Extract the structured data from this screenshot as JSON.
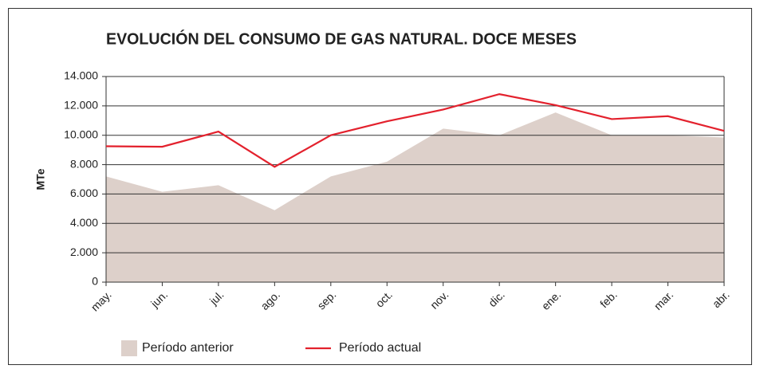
{
  "chart_data": {
    "type": "area",
    "title": "EVOLUCIÓN DEL CONSUMO DE GAS NATURAL. DOCE MESES",
    "y_label": "MTe",
    "categories": [
      "may.",
      "jun.",
      "jul.",
      "ago.",
      "sep.",
      "oct.",
      "nov.",
      "dic.",
      "ene.",
      "feb.",
      "mar.",
      "abr."
    ],
    "series": [
      {
        "name": "Período anterior",
        "type": "area",
        "color": "#ddd0ca",
        "values": [
          7200,
          6150,
          6600,
          4900,
          7200,
          8200,
          10450,
          10000,
          11550,
          10000,
          10000,
          9850
        ]
      },
      {
        "name": "Período actual",
        "type": "line",
        "color": "#e3212d",
        "values": [
          9250,
          9220,
          10250,
          7850,
          10000,
          10950,
          11750,
          12800,
          12050,
          11100,
          11300,
          10300
        ]
      }
    ],
    "ylim": [
      0,
      14000
    ],
    "yticks": [
      0,
      {
        "value": 2000,
        "label": "2.000"
      },
      {
        "value": 4000,
        "label": "4.000"
      },
      {
        "value": 6000,
        "label": "6.000"
      },
      {
        "value": 8000,
        "label": "8.000"
      },
      {
        "value": 10000,
        "label": "10.000"
      },
      {
        "value": 12000,
        "label": "12.000"
      },
      {
        "value": 14000,
        "label": "14.000"
      }
    ],
    "grid": true,
    "legend": "bottom"
  }
}
